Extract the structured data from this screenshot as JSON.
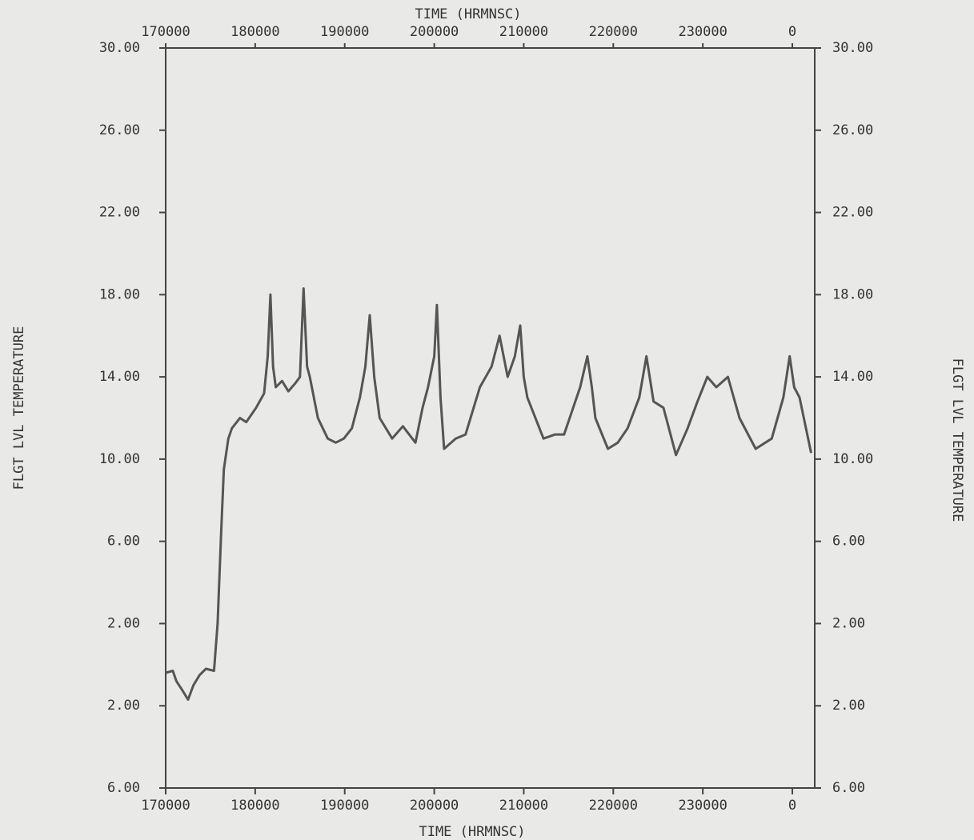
{
  "chart_data": {
    "type": "line",
    "x_label": "TIME (HRMNSC)",
    "y_label": "FLGT LVL TEMPERATURE",
    "xlim": [
      170000,
      242500
    ],
    "ylim": [
      -6,
      30
    ],
    "xticks": [
      170000,
      180000,
      190000,
      200000,
      210000,
      220000,
      230000,
      {
        "value": 240000,
        "label": "0"
      }
    ],
    "yticks": [
      {
        "value": 30,
        "label": "30.00"
      },
      {
        "value": 26,
        "label": "26.00"
      },
      {
        "value": 22,
        "label": "22.00"
      },
      {
        "value": 18,
        "label": "18.00"
      },
      {
        "value": 14,
        "label": "14.00"
      },
      {
        "value": 10,
        "label": "10.00"
      },
      {
        "value": 6,
        "label": "6.00"
      },
      {
        "value": 2,
        "label": "2.00"
      },
      {
        "value": -2,
        "label": "2.00"
      },
      {
        "value": -6,
        "label": "6.00"
      }
    ],
    "series": [
      {
        "color": "#555555",
        "x": [
          170000,
          170800,
          171200,
          171800,
          172500,
          173100,
          173800,
          174500,
          175400,
          175800,
          176200,
          176500,
          177000,
          177400,
          178300,
          179000,
          180100,
          181000,
          181400,
          181700,
          182000,
          182300,
          183000,
          183700,
          184500,
          185000,
          185400,
          185800,
          186100,
          187000,
          188100,
          189000,
          189900,
          190800,
          191700,
          192300,
          192800,
          193300,
          193900,
          195300,
          196500,
          197900,
          198700,
          199300,
          200000,
          200300,
          200700,
          201100,
          202400,
          203500,
          205100,
          206400,
          207300,
          208200,
          209000,
          209600,
          210000,
          210400,
          212200,
          213500,
          214500,
          216300,
          217100,
          217600,
          218000,
          219400,
          220500,
          221600,
          222900,
          223700,
          224500,
          225600,
          227000,
          228300,
          229400,
          230500,
          231500,
          232800,
          234100,
          235900,
          237700,
          239000,
          239700,
          240200,
          240800,
          242100
        ],
        "values": [
          -0.4,
          -0.3,
          -0.8,
          -1.2,
          -1.7,
          -1.0,
          -0.5,
          -0.2,
          -0.3,
          2.0,
          6.5,
          9.5,
          11.0,
          11.5,
          12.0,
          11.8,
          12.5,
          13.2,
          15.0,
          18.0,
          14.5,
          13.5,
          13.8,
          13.3,
          13.7,
          14.0,
          18.3,
          14.5,
          14.0,
          12.0,
          11.0,
          10.8,
          11.0,
          11.5,
          13.0,
          14.5,
          17.0,
          14.0,
          12.0,
          11.0,
          11.6,
          10.8,
          12.5,
          13.5,
          15.0,
          17.5,
          13.0,
          10.5,
          11.0,
          11.2,
          13.5,
          14.5,
          16.0,
          14.0,
          15.0,
          16.5,
          14.0,
          13.0,
          11.0,
          11.2,
          11.2,
          13.5,
          15.0,
          13.5,
          12.0,
          10.5,
          10.8,
          11.5,
          13.0,
          15.0,
          12.8,
          12.5,
          10.2,
          11.5,
          12.8,
          14.0,
          13.5,
          14.0,
          12.0,
          10.5,
          11.0,
          13.0,
          15.0,
          13.5,
          13.0,
          10.3
        ]
      }
    ]
  }
}
